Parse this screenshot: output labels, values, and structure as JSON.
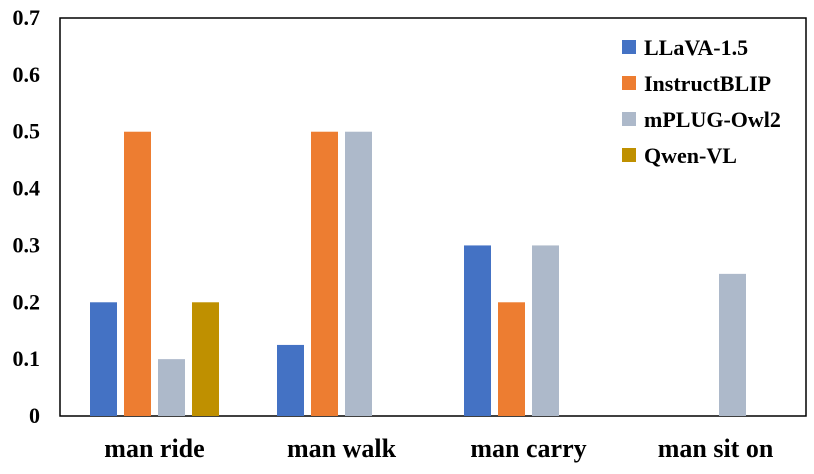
{
  "chart_data": {
    "type": "bar",
    "categories": [
      "man ride",
      "man walk",
      "man carry",
      "man sit on"
    ],
    "series": [
      {
        "name": "LLaVA-1.5",
        "color": "#4472C4",
        "values": [
          0.2,
          0.125,
          0.3,
          0
        ]
      },
      {
        "name": "InstructBLIP",
        "color": "#ED7D31",
        "values": [
          0.5,
          0.5,
          0.2,
          0
        ]
      },
      {
        "name": "mPLUG-Owl2",
        "color": "#ADB9CA",
        "values": [
          0.1,
          0.5,
          0.3,
          0.25
        ]
      },
      {
        "name": "Qwen-VL",
        "color": "#BF9000",
        "values": [
          0.2,
          0,
          0,
          0
        ]
      }
    ],
    "ylim": [
      0,
      0.7
    ],
    "yticks": [
      "0",
      "0.1",
      "0.2",
      "0.3",
      "0.4",
      "0.5",
      "0.6",
      "0.7"
    ],
    "title": "",
    "xlabel": "",
    "ylabel": "",
    "grid": false,
    "legend_position": "top-right"
  }
}
